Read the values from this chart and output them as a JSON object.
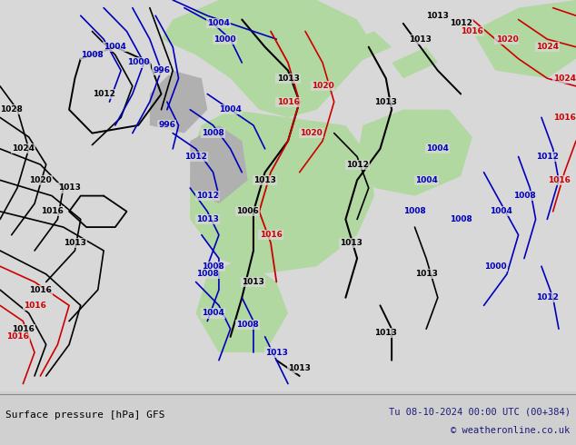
{
  "title_left": "Surface pressure [hPa] GFS",
  "title_right": "Tu 08-10-2024 00:00 UTC (00+384)",
  "copyright": "© weatheronline.co.uk",
  "bg_color": "#d0d0d0",
  "map_bg_color": "#d8d8d8",
  "land_green": "#b0d8a0",
  "land_gray": "#b0b0b0",
  "c_black": "#000000",
  "c_blue": "#0000bb",
  "c_red": "#cc0000",
  "footer_dark": "#000000",
  "footer_blue": "#1a1a7a"
}
